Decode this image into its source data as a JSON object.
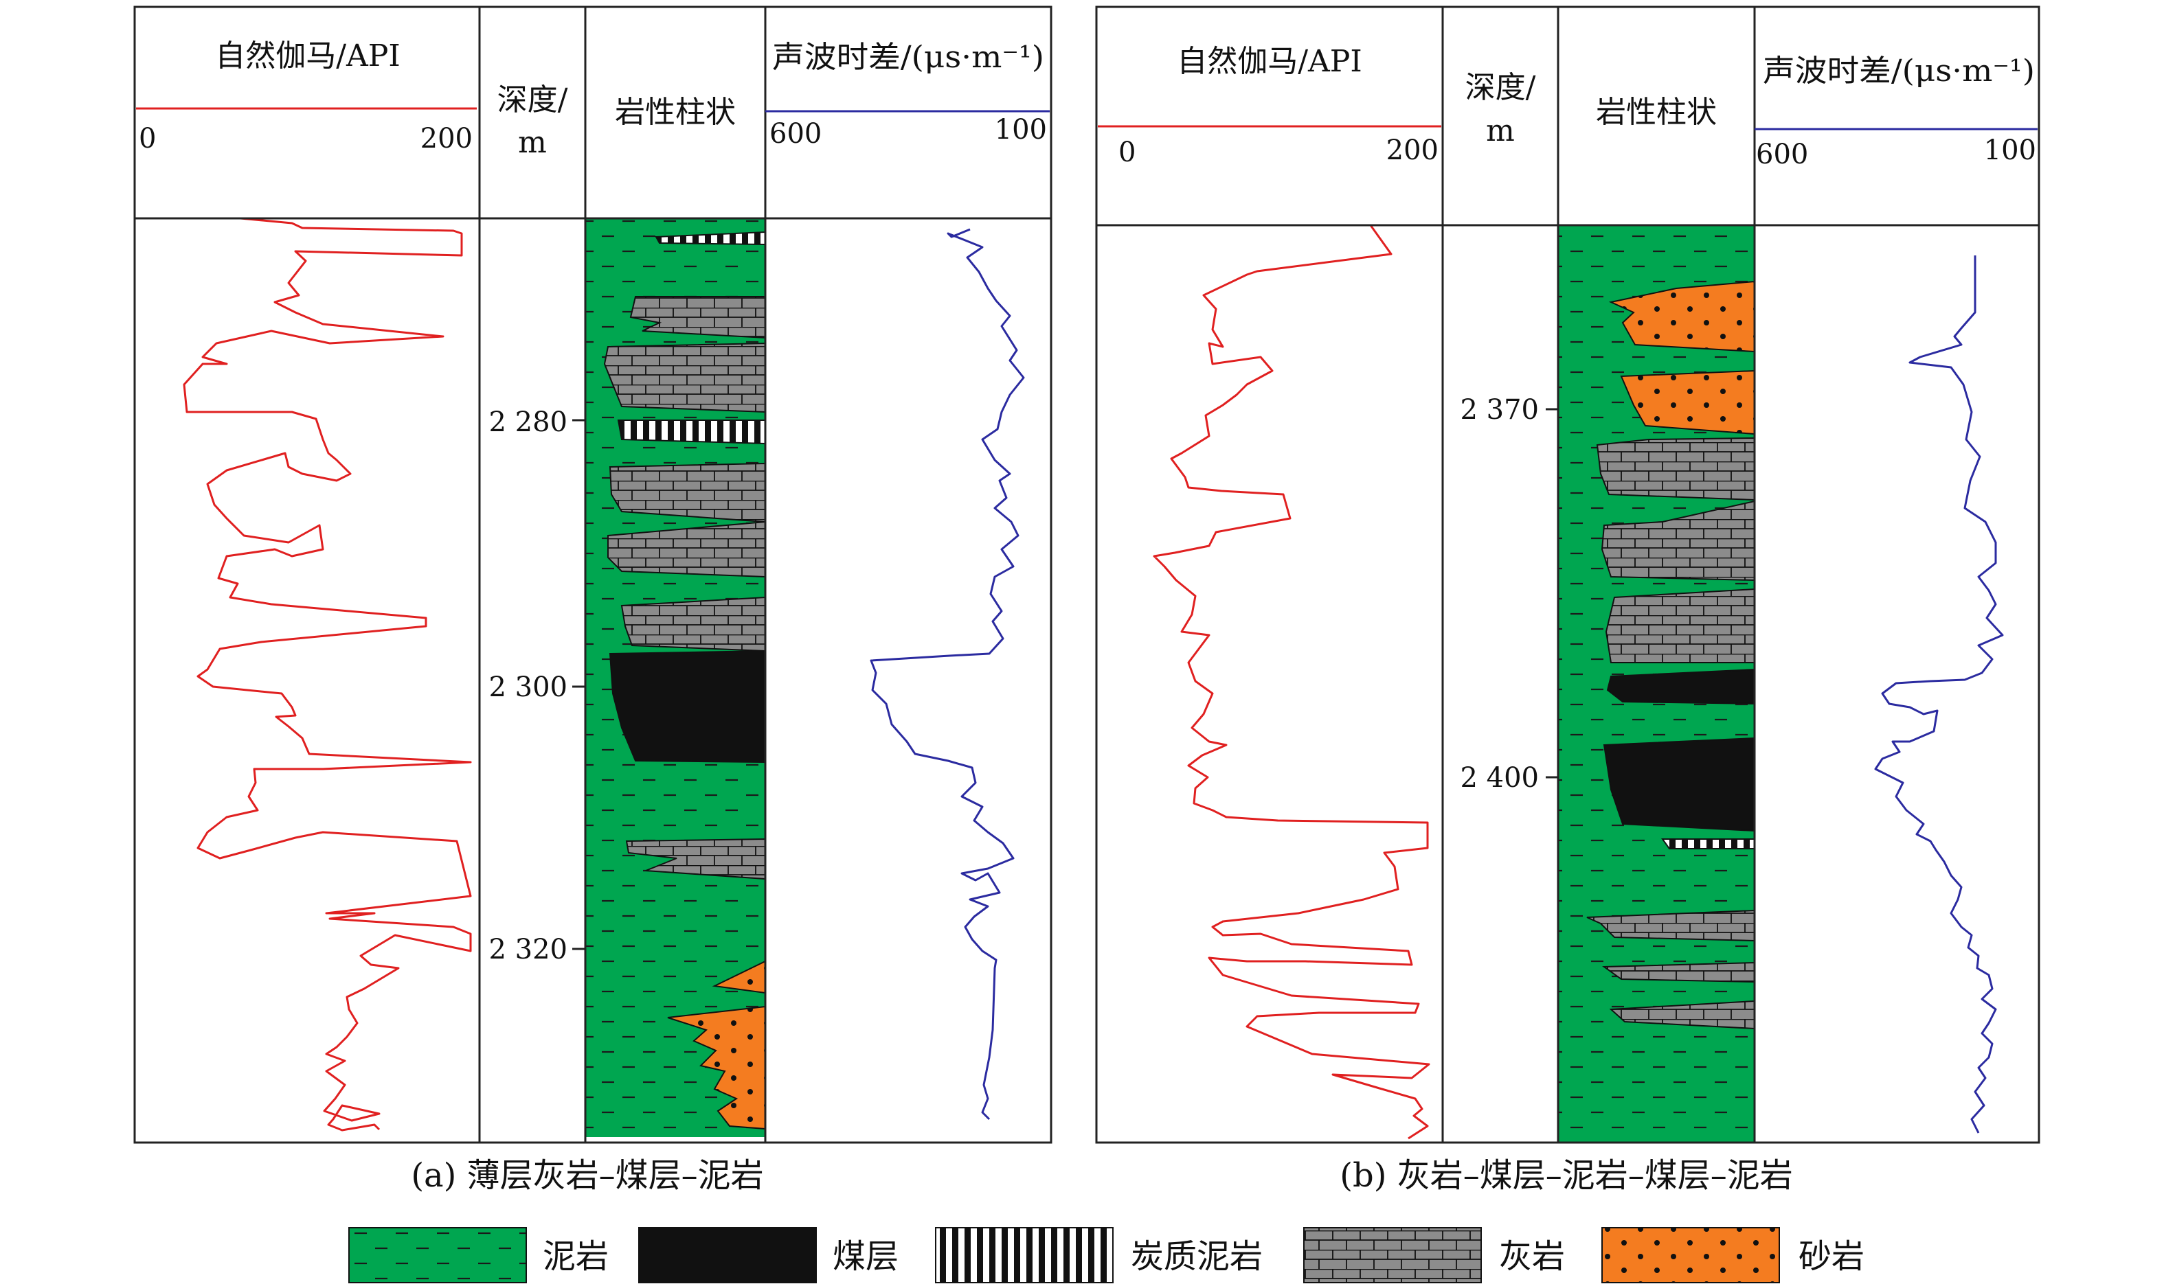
{
  "colors": {
    "mudstone": "#00a650",
    "coal": "#111111",
    "limestone": "#8c8c8c",
    "sandstone": "#f47c20",
    "gr_curve": "#e02020",
    "ac_curve": "#2b2ba0",
    "frame": "#222222"
  },
  "headers": {
    "gr_title": "自然伽马/API",
    "gr_min": "0",
    "gr_max": "200",
    "depth_title_1": "深度/",
    "depth_title_2": "m",
    "lith_title": "岩性柱状",
    "ac_title": "声波时差/(μs·m⁻¹)",
    "ac_left": "600",
    "ac_right": "100"
  },
  "panels": [
    {
      "caption": "(a) 薄层灰岩–煤层–泥岩",
      "depth_ticks": [
        "2 280",
        "2 300",
        "2 320"
      ]
    },
    {
      "caption": "(b) 灰岩–煤层–泥岩–煤层–泥岩",
      "depth_ticks": [
        "2 370",
        "2 400"
      ]
    }
  ],
  "legend": [
    {
      "label": "泥岩",
      "icon": "mudstone-pattern"
    },
    {
      "label": "煤层",
      "icon": "coal-pattern"
    },
    {
      "label": "炭质泥岩",
      "icon": "carbonaceous-mudstone-pattern"
    },
    {
      "label": "灰岩",
      "icon": "limestone-pattern"
    },
    {
      "label": "砂岩",
      "icon": "sandstone-pattern"
    }
  ]
}
